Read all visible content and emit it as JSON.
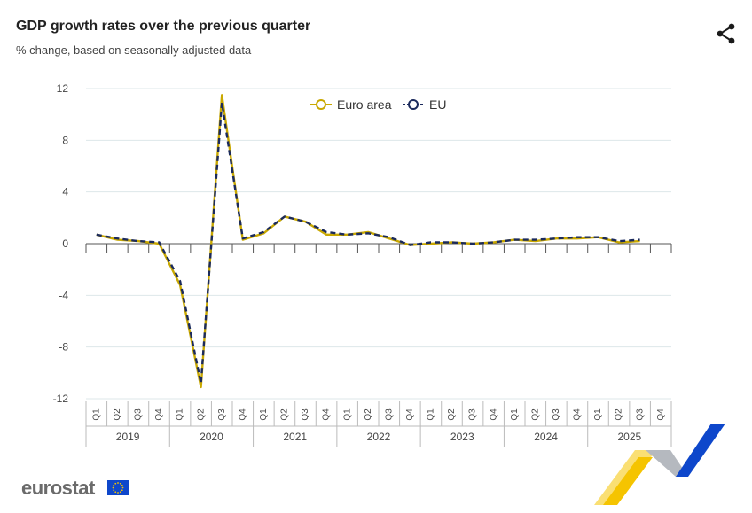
{
  "header": {
    "title": "GDP growth rates over the previous quarter",
    "subtitle": "% change, based on seasonally adjusted data"
  },
  "brand": {
    "name": "eurostat"
  },
  "icons": {
    "share": "share-icon",
    "flag": "eu-flag-icon"
  },
  "colors": {
    "euro_area": "#c9a800",
    "eu": "#1b2a5c",
    "grid": "#dde7ea",
    "brand_blue": "#0e47cb",
    "brand_yellow": "#f5c400"
  },
  "chart_data": {
    "type": "line",
    "title": "GDP growth rates over the previous quarter",
    "subtitle": "% change, based on seasonally adjusted data",
    "xlabel": "",
    "ylabel": "",
    "ylim": [
      -12,
      12
    ],
    "yticks": [
      "12",
      "8",
      "4",
      "0",
      "-4",
      "-8",
      "-12"
    ],
    "grid": true,
    "legend": "top-center",
    "quarters": [
      "Q1",
      "Q2",
      "Q3",
      "Q4"
    ],
    "years": [
      "2019",
      "2020",
      "2021",
      "2022",
      "2023",
      "2024",
      "2025"
    ],
    "categories": [
      "2019 Q1",
      "2019 Q2",
      "2019 Q3",
      "2019 Q4",
      "2020 Q1",
      "2020 Q2",
      "2020 Q3",
      "2020 Q4",
      "2021 Q1",
      "2021 Q2",
      "2021 Q3",
      "2021 Q4",
      "2022 Q1",
      "2022 Q2",
      "2022 Q3",
      "2022 Q4",
      "2023 Q1",
      "2023 Q2",
      "2023 Q3",
      "2023 Q4",
      "2024 Q1",
      "2024 Q2",
      "2024 Q3",
      "2024 Q4",
      "2025 Q1",
      "2025 Q2",
      "2025 Q3",
      "2025 Q4"
    ],
    "series": [
      {
        "name": "Euro area",
        "values": [
          0.7,
          0.3,
          0.2,
          0.0,
          -3.2,
          -11.1,
          11.5,
          0.3,
          0.8,
          2.1,
          1.7,
          0.7,
          0.7,
          0.9,
          0.4,
          -0.1,
          0.0,
          0.1,
          0.0,
          0.1,
          0.3,
          0.2,
          0.4,
          0.4,
          0.5,
          0.1,
          0.2,
          null
        ]
      },
      {
        "name": "EU",
        "values": [
          0.7,
          0.4,
          0.2,
          0.1,
          -2.9,
          -10.8,
          10.9,
          0.4,
          0.9,
          2.1,
          1.7,
          0.9,
          0.7,
          0.8,
          0.5,
          -0.1,
          0.1,
          0.1,
          0.0,
          0.1,
          0.3,
          0.3,
          0.4,
          0.5,
          0.5,
          0.2,
          0.3,
          null
        ]
      }
    ]
  }
}
